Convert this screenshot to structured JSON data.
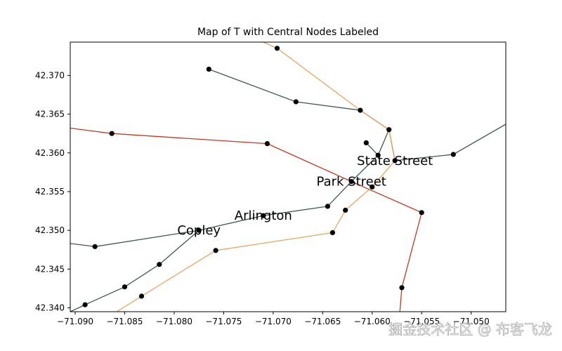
{
  "chart_data": {
    "type": "line",
    "title": "Map of T with Central Nodes Labeled",
    "xlim": [
      -71.0905,
      -71.0465
    ],
    "ylim": [
      42.3395,
      42.3743
    ],
    "x_ticks": [
      -71.09,
      -71.085,
      -71.08,
      -71.075,
      -71.07,
      -71.065,
      -71.06,
      -71.055,
      -71.05
    ],
    "x_tick_labels": [
      "−71.090",
      "−71.085",
      "−71.080",
      "−71.075",
      "−71.070",
      "−71.065",
      "−71.060",
      "−71.055",
      "−71.050"
    ],
    "y_ticks": [
      42.34,
      42.345,
      42.35,
      42.355,
      42.36,
      42.365,
      42.37
    ],
    "y_tick_labels": [
      "42.340",
      "42.345",
      "42.350",
      "42.355",
      "42.360",
      "42.365",
      "42.370"
    ],
    "grid": false,
    "series": [
      {
        "line": "green",
        "color": "#3f5a4a",
        "segments": [
          [
            [
              -71.0905,
              42.3483
            ],
            [
              -71.088,
              42.3479
            ],
            [
              -71.0775,
              42.35
            ],
            [
              -71.071,
              42.3519
            ],
            [
              -71.0645,
              42.3531
            ],
            [
              -71.0621,
              42.3563
            ],
            [
              -71.0594,
              42.3597
            ],
            [
              -71.0583,
              42.363
            ]
          ],
          [
            [
              -71.0905,
              42.3395
            ],
            [
              -71.089,
              42.3404
            ],
            [
              -71.085,
              42.3427
            ],
            [
              -71.0815,
              42.3456
            ],
            [
              -71.0775,
              42.35
            ]
          ],
          [
            [
              -71.0765,
              42.3708
            ],
            [
              -71.0677,
              42.3666
            ],
            [
              -71.0612,
              42.3655
            ],
            [
              -71.0583,
              42.363
            ],
            [
              -71.0577,
              42.359
            ]
          ],
          [
            [
              -71.0577,
              42.359
            ],
            [
              -71.0518,
              42.3598
            ],
            [
              -71.0465,
              42.3637
            ]
          ],
          [
            [
              -71.0606,
              42.3613
            ],
            [
              -71.0594,
              42.3597
            ]
          ]
        ]
      },
      {
        "line": "red",
        "color": "#c4391e",
        "segments": [
          [
            [
              -71.0905,
              42.3632
            ],
            [
              -71.0863,
              42.3625
            ],
            [
              -71.0706,
              42.3612
            ],
            [
              -71.0621,
              42.3563
            ],
            [
              -71.055,
              42.3523
            ],
            [
              -71.057,
              42.3426
            ],
            [
              -71.0572,
              42.3395
            ]
          ]
        ]
      },
      {
        "line": "orange",
        "color": "#e8a55f",
        "segments": [
          [
            [
              -71.071,
              42.3743
            ],
            [
              -71.0696,
              42.3735
            ],
            [
              -71.0612,
              42.3655
            ],
            [
              -71.0583,
              42.363
            ],
            [
              -71.0577,
              42.359
            ],
            [
              -71.06,
              42.3556
            ],
            [
              -71.0627,
              42.3526
            ],
            [
              -71.064,
              42.3497
            ],
            [
              -71.0758,
              42.3474
            ],
            [
              -71.0833,
              42.3415
            ],
            [
              -71.0858,
              42.3395
            ]
          ]
        ]
      }
    ],
    "nodes": [
      [
        -71.088,
        42.3479
      ],
      [
        -71.0775,
        42.35
      ],
      [
        -71.071,
        42.3519
      ],
      [
        -71.0645,
        42.3531
      ],
      [
        -71.0621,
        42.3563
      ],
      [
        -71.0594,
        42.3597
      ],
      [
        -71.0583,
        42.363
      ],
      [
        -71.089,
        42.3404
      ],
      [
        -71.085,
        42.3427
      ],
      [
        -71.0815,
        42.3456
      ],
      [
        -71.0765,
        42.3708
      ],
      [
        -71.0677,
        42.3666
      ],
      [
        -71.0612,
        42.3655
      ],
      [
        -71.0577,
        42.359
      ],
      [
        -71.0518,
        42.3598
      ],
      [
        -71.0606,
        42.3613
      ],
      [
        -71.0863,
        42.3625
      ],
      [
        -71.0706,
        42.3612
      ],
      [
        -71.055,
        42.3523
      ],
      [
        -71.057,
        42.3426
      ],
      [
        -71.0696,
        42.3735
      ],
      [
        -71.06,
        42.3556
      ],
      [
        -71.0627,
        42.3526
      ],
      [
        -71.064,
        42.3497
      ],
      [
        -71.0758,
        42.3474
      ],
      [
        -71.0833,
        42.3415
      ]
    ],
    "annotations": [
      {
        "text": "State Street",
        "x": -71.0577,
        "y": 42.359
      },
      {
        "text": "Park Street",
        "x": -71.0621,
        "y": 42.3563
      },
      {
        "text": "Arlington",
        "x": -71.071,
        "y": 42.3519
      },
      {
        "text": "Copley",
        "x": -71.0775,
        "y": 42.35
      }
    ]
  },
  "watermark": "掘金技术社区 @ 布客飞龙"
}
